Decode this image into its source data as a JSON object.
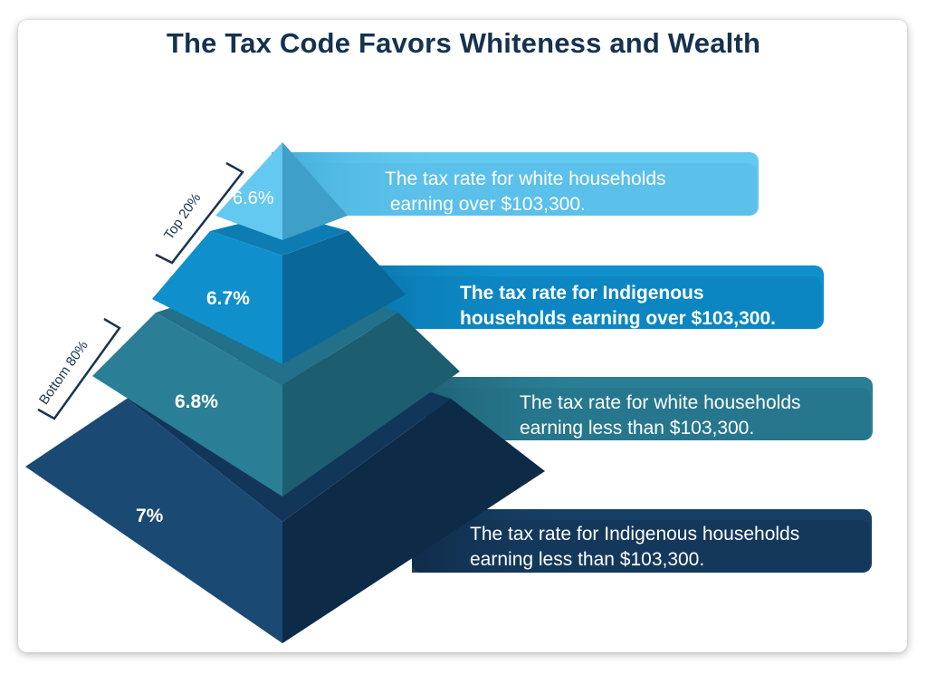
{
  "title": "The Tax Code Favors Whiteness and Wealth",
  "tiers": [
    {
      "percent": "6.6%",
      "text": "The tax rate for white households\n earning over $103,300.",
      "color": "#64c9f1"
    },
    {
      "percent": "6.7%",
      "text": "The tax rate for Indigenous\nhouseholds earning over $103,300.",
      "color": "#0f90cd"
    },
    {
      "percent": "6.8%",
      "text": "The tax rate for white households\nearning less than $103,300.",
      "color": "#2a7f96"
    },
    {
      "percent": "7%",
      "text": "The tax rate for Indigenous households\nearning less than $103,300.",
      "color": "#173f66"
    }
  ],
  "brackets": {
    "top": "Top 20%",
    "bottom": "Bottom 80%"
  }
}
